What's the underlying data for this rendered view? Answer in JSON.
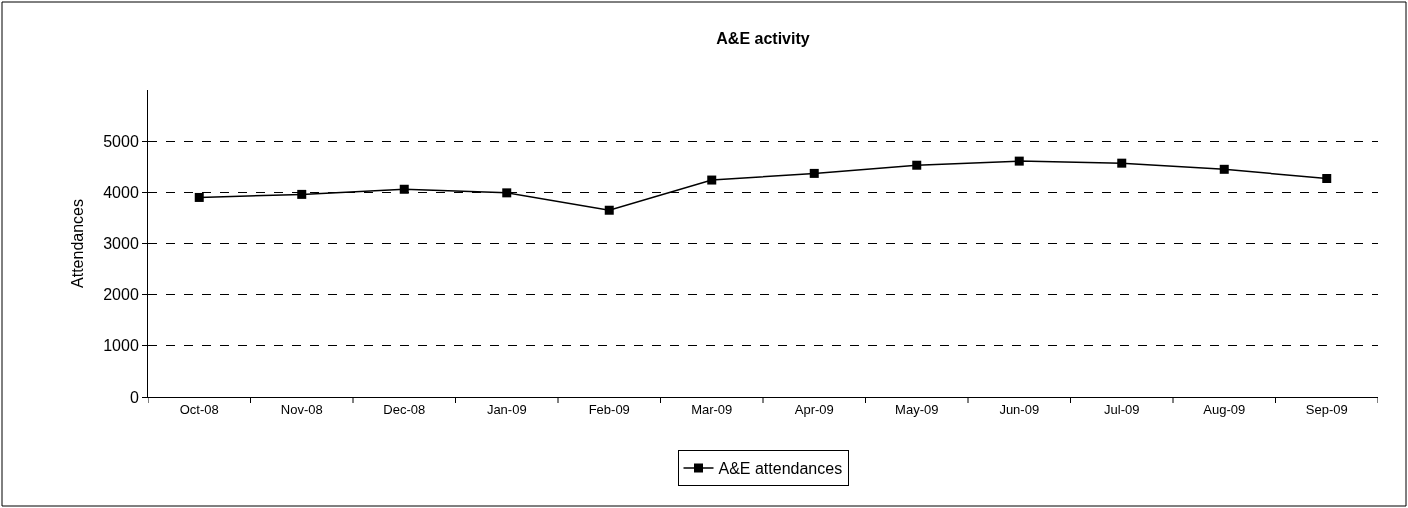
{
  "chart_data": {
    "type": "line",
    "title": "A&E activity",
    "ylabel": "Attendances",
    "categories": [
      "Oct-08",
      "Nov-08",
      "Dec-08",
      "Jan-09",
      "Feb-09",
      "Mar-09",
      "Apr-09",
      "May-09",
      "Jun-09",
      "Jul-09",
      "Aug-09",
      "Sep-09"
    ],
    "series": [
      {
        "name": "A&E attendances",
        "color": "#000000",
        "values": [
          3900,
          3960,
          4060,
          3990,
          3650,
          4240,
          4370,
          4530,
          4610,
          4570,
          4450,
          4270
        ]
      }
    ],
    "ylim": [
      0,
      6000
    ],
    "yticks": [
      0,
      1000,
      2000,
      3000,
      4000,
      5000
    ],
    "grid": "y",
    "legend": "bottom",
    "marker": "square",
    "line_style": "solid"
  }
}
